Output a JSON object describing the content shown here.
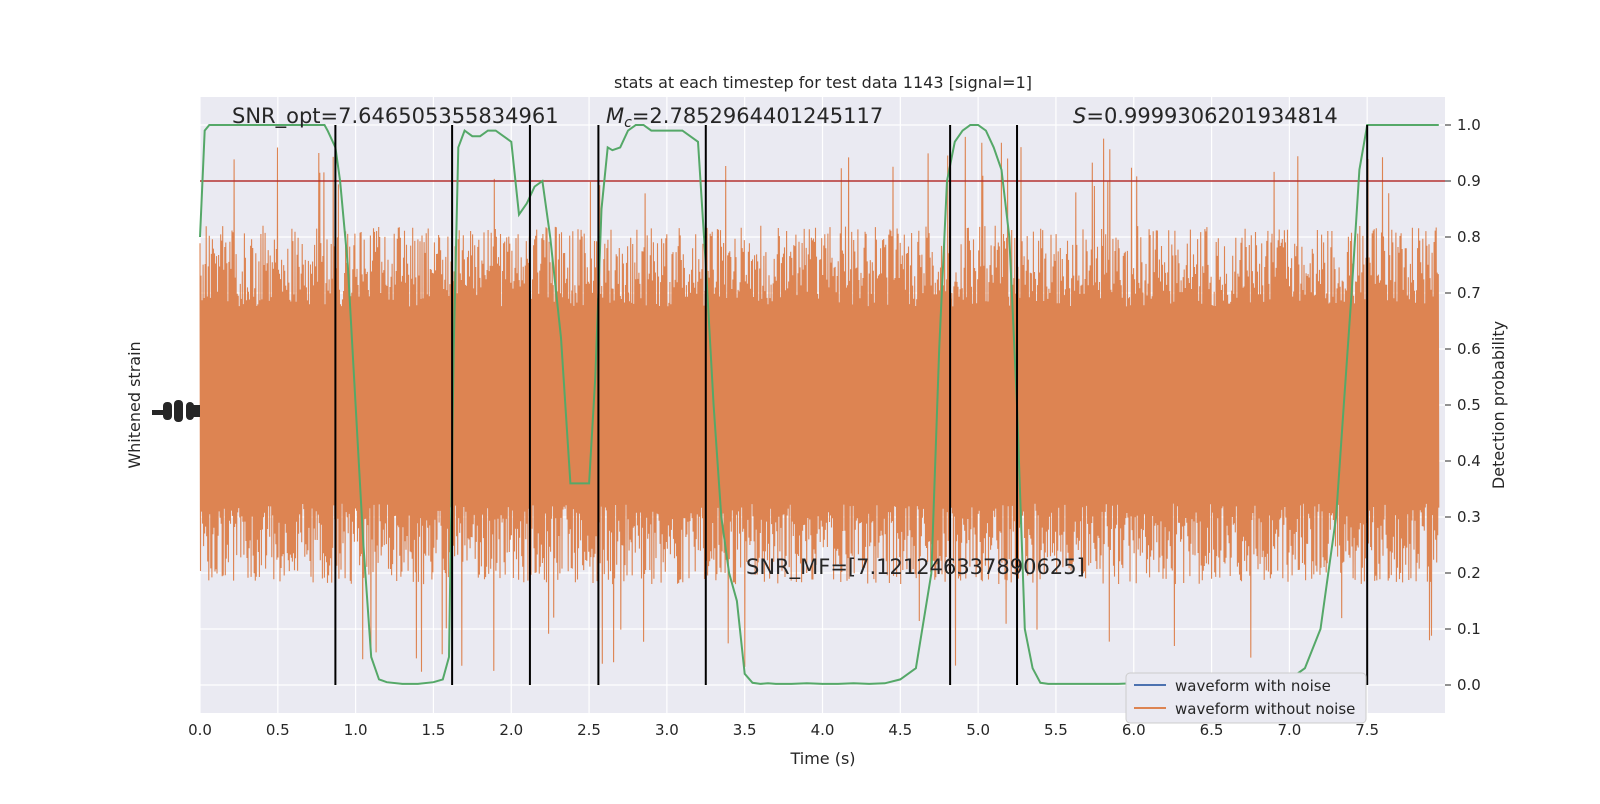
{
  "chart_data": {
    "type": "line",
    "title": "stats at each timestep for test data 1143 [signal=1]",
    "xlabel": "Time (s)",
    "ylabel_left": "Whitened strain",
    "ylabel_right": "Detection probability",
    "xlim": [
      0,
      8.0
    ],
    "ylim_right": [
      -0.05,
      1.05
    ],
    "xticks": [
      "0.0",
      "0.5",
      "1.0",
      "1.5",
      "2.0",
      "2.5",
      "3.0",
      "3.5",
      "4.0",
      "4.5",
      "5.0",
      "5.5",
      "6.0",
      "6.5",
      "7.0",
      "7.5"
    ],
    "xtick_values": [
      0,
      0.5,
      1.0,
      1.5,
      2.0,
      2.5,
      3.0,
      3.5,
      4.0,
      4.5,
      5.0,
      5.5,
      6.0,
      6.5,
      7.0,
      7.5
    ],
    "yticks_right": [
      "0.0",
      "0.1",
      "0.2",
      "0.3",
      "0.4",
      "0.5",
      "0.6",
      "0.7",
      "0.8",
      "0.9",
      "1.0"
    ],
    "ytick_values_right": [
      0,
      0.1,
      0.2,
      0.3,
      0.4,
      0.5,
      0.6,
      0.7,
      0.8,
      0.9,
      1.0
    ],
    "grid": true,
    "legend_position": "bottom-right",
    "legend": [
      "waveform with noise",
      "waveform without noise"
    ],
    "annotations": {
      "snr_opt": "SNR_opt=7.646505355834961",
      "mc_symbol": "M",
      "mc_subscript": "c",
      "mc_value": "=2.7852964401245117",
      "s_symbol": "S",
      "s_value": "=0.9999306201934814",
      "snr_mf": "SNR_MF=[7.121246337890625]"
    },
    "threshold": 0.9,
    "vertical_lines": [
      0.87,
      1.62,
      2.12,
      2.56,
      3.25,
      4.82,
      5.25,
      7.5
    ],
    "series": [
      {
        "name": "waveform with noise",
        "color": "#4c72b0",
        "values": []
      },
      {
        "name": "waveform without noise",
        "color": "#dd8452",
        "envelope_probability_units": {
          "center": 0.5,
          "typical_half_width": 0.32,
          "peak_max": 1.0,
          "peak_min": 0.0
        }
      },
      {
        "name": "detection probability",
        "color": "#55a868",
        "x": [
          0.0,
          0.03,
          0.06,
          0.1,
          0.15,
          0.2,
          0.3,
          0.4,
          0.5,
          0.6,
          0.7,
          0.8,
          0.82,
          0.87,
          0.9,
          0.95,
          1.0,
          1.05,
          1.1,
          1.15,
          1.2,
          1.3,
          1.4,
          1.5,
          1.56,
          1.6,
          1.63,
          1.66,
          1.7,
          1.75,
          1.8,
          1.85,
          1.9,
          1.95,
          2.0,
          2.05,
          2.1,
          2.15,
          2.2,
          2.25,
          2.32,
          2.38,
          2.45,
          2.5,
          2.54,
          2.58,
          2.62,
          2.65,
          2.7,
          2.75,
          2.8,
          2.85,
          2.9,
          2.95,
          3.0,
          3.05,
          3.1,
          3.15,
          3.2,
          3.25,
          3.3,
          3.35,
          3.4,
          3.45,
          3.5,
          3.55,
          3.6,
          3.65,
          3.7,
          3.8,
          3.9,
          4.0,
          4.1,
          4.2,
          4.3,
          4.4,
          4.5,
          4.6,
          4.7,
          4.75,
          4.8,
          4.85,
          4.9,
          4.95,
          5.0,
          5.05,
          5.1,
          5.15,
          5.2,
          5.25,
          5.3,
          5.35,
          5.4,
          5.45,
          5.5,
          5.6,
          5.7,
          5.8,
          5.9,
          6.0,
          6.1,
          6.2,
          6.3,
          6.4,
          6.5,
          6.6,
          6.7,
          6.8,
          6.9,
          7.0,
          7.1,
          7.2,
          7.3,
          7.35,
          7.4,
          7.45,
          7.5,
          7.55,
          7.6,
          7.65,
          7.7,
          7.8,
          7.9,
          7.96
        ],
        "y": [
          0.8,
          0.99,
          1.0,
          1.0,
          1.0,
          1.0,
          1.0,
          1.0,
          1.0,
          1.0,
          1.0,
          1.0,
          0.99,
          0.96,
          0.9,
          0.75,
          0.5,
          0.25,
          0.05,
          0.01,
          0.005,
          0.002,
          0.002,
          0.005,
          0.01,
          0.05,
          0.6,
          0.96,
          0.99,
          0.98,
          0.98,
          0.99,
          0.99,
          0.98,
          0.97,
          0.84,
          0.86,
          0.89,
          0.9,
          0.8,
          0.62,
          0.36,
          0.36,
          0.36,
          0.55,
          0.85,
          0.96,
          0.955,
          0.96,
          0.99,
          1.0,
          1.0,
          0.99,
          0.99,
          0.99,
          0.99,
          0.99,
          0.98,
          0.97,
          0.75,
          0.5,
          0.3,
          0.2,
          0.15,
          0.02,
          0.004,
          0.002,
          0.003,
          0.002,
          0.002,
          0.003,
          0.002,
          0.002,
          0.003,
          0.002,
          0.003,
          0.01,
          0.03,
          0.2,
          0.6,
          0.9,
          0.97,
          0.99,
          1.0,
          1.0,
          0.99,
          0.96,
          0.92,
          0.8,
          0.5,
          0.1,
          0.03,
          0.004,
          0.002,
          0.002,
          0.002,
          0.002,
          0.002,
          0.002,
          0.003,
          0.003,
          0.003,
          0.003,
          0.003,
          0.004,
          0.004,
          0.004,
          0.003,
          0.003,
          0.01,
          0.03,
          0.1,
          0.3,
          0.5,
          0.7,
          0.92,
          1.0,
          1.0,
          1.0,
          1.0,
          1.0,
          1.0,
          1.0,
          1.0
        ]
      }
    ]
  }
}
